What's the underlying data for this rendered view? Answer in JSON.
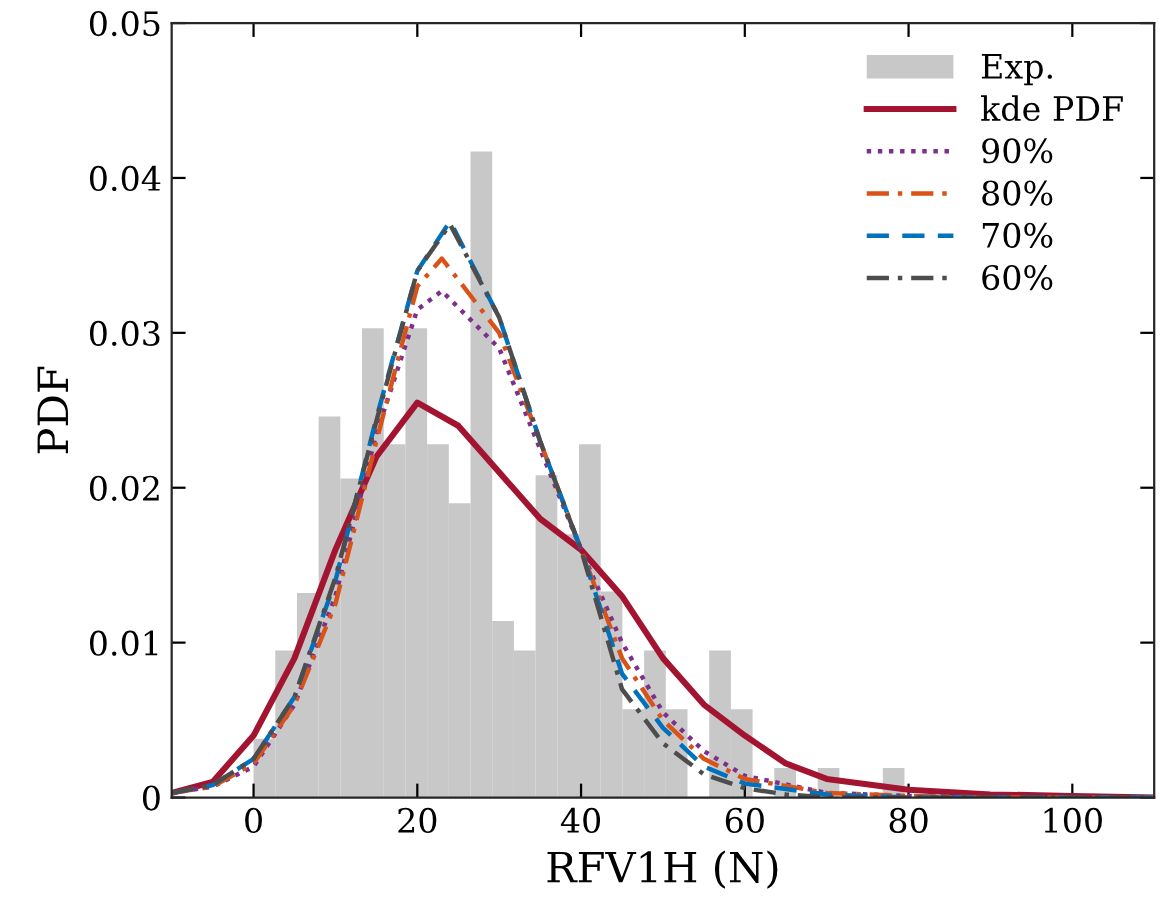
{
  "chart_data": {
    "type": "histogram",
    "xlabel": "RFV1H (N)",
    "ylabel": "PDF",
    "xlim": [
      -10,
      110
    ],
    "ylim": [
      0,
      0.05
    ],
    "xticks": [
      0,
      20,
      40,
      60,
      80,
      100
    ],
    "yticks": [
      0,
      0.01,
      0.02,
      0.03,
      0.04,
      0.05
    ],
    "grid": false,
    "legend": "top right",
    "bins": [
      0,
      2.65,
      5.3,
      7.95,
      10.6,
      13.25,
      15.9,
      18.55,
      21.2,
      23.85,
      26.5,
      29.15,
      31.8,
      34.45,
      37.1,
      39.75,
      42.4,
      45.05,
      47.7,
      50.35,
      53,
      55.65,
      58.3,
      60.95,
      63.6,
      66.25,
      68.9,
      71.55,
      74.2,
      76.85,
      79.5
    ],
    "series": [
      {
        "name": "Exp.",
        "color": "#c8c8c8",
        "values": [
          0.0038,
          0.0095,
          0.0132,
          0.0246,
          0.0206,
          0.0303,
          0.0228,
          0.0303,
          0.0228,
          0.019,
          0.0417,
          0.0114,
          0.0095,
          0.0208,
          0.017,
          0.0228,
          0.0133,
          0.0057,
          0.0095,
          0.0057,
          0,
          0.0095,
          0.0057,
          0,
          0.0019,
          0,
          0.0019,
          0,
          0,
          0.0019
        ]
      },
      {
        "type": "line",
        "name": "kde PDF",
        "color": "#a2142f",
        "line_style": "solid",
        "x": [
          -10,
          -5,
          0,
          5,
          10,
          15,
          20,
          25,
          30,
          35,
          40,
          45,
          50,
          55,
          60,
          65,
          70,
          80,
          90,
          100,
          110
        ],
        "values": [
          0.0003,
          0.001,
          0.004,
          0.009,
          0.016,
          0.022,
          0.0255,
          0.024,
          0.021,
          0.018,
          0.016,
          0.013,
          0.009,
          0.006,
          0.004,
          0.0022,
          0.0012,
          0.0005,
          0.0002,
          0.0001,
          0
        ]
      },
      {
        "type": "line",
        "name": "90%",
        "color": "#7e2f8e",
        "line_style": "dotted",
        "x": [
          -10,
          -5,
          0,
          5,
          10,
          15,
          20,
          23,
          30,
          35,
          40,
          45,
          50,
          55,
          60,
          70,
          80,
          90,
          100,
          110
        ],
        "values": [
          0.0003,
          0.0007,
          0.002,
          0.006,
          0.013,
          0.0235,
          0.0315,
          0.0327,
          0.029,
          0.0225,
          0.016,
          0.01,
          0.0055,
          0.003,
          0.0014,
          0.0003,
          0.0001,
          0,
          0,
          0
        ]
      },
      {
        "type": "line",
        "name": "80%",
        "color": "#d95319",
        "line_style": "dashdot",
        "x": [
          -10,
          -5,
          0,
          5,
          10,
          15,
          20,
          23,
          30,
          35,
          40,
          45,
          50,
          55,
          60,
          70,
          80,
          90,
          100,
          110
        ],
        "values": [
          0.0003,
          0.0007,
          0.0022,
          0.006,
          0.0125,
          0.023,
          0.033,
          0.0348,
          0.03,
          0.023,
          0.016,
          0.009,
          0.005,
          0.0025,
          0.0012,
          0.0003,
          0.0001,
          0,
          0,
          0
        ]
      },
      {
        "type": "line",
        "name": "70%",
        "color": "#0072bd",
        "line_style": "dashed",
        "x": [
          -10,
          -5,
          0,
          5,
          10,
          15,
          20,
          24,
          30,
          35,
          40,
          45,
          50,
          55,
          60,
          70,
          80,
          90,
          100,
          110
        ],
        "values": [
          0.0003,
          0.0008,
          0.0025,
          0.0065,
          0.014,
          0.0245,
          0.034,
          0.0372,
          0.031,
          0.023,
          0.016,
          0.008,
          0.0045,
          0.002,
          0.0009,
          0.0002,
          0,
          0,
          0,
          0
        ]
      },
      {
        "type": "line",
        "name": "60%",
        "color": "#4d4d4d",
        "line_style": "dashdot",
        "x": [
          -10,
          -5,
          0,
          5,
          10,
          15,
          20,
          24,
          30,
          35,
          40,
          45,
          50,
          55,
          60,
          65,
          70,
          80,
          90,
          100,
          110
        ],
        "values": [
          0.0003,
          0.0008,
          0.0025,
          0.0065,
          0.0142,
          0.0243,
          0.034,
          0.037,
          0.031,
          0.023,
          0.016,
          0.007,
          0.0035,
          0.0015,
          0.0006,
          0.0002,
          0,
          0,
          0,
          0,
          0
        ]
      }
    ]
  }
}
